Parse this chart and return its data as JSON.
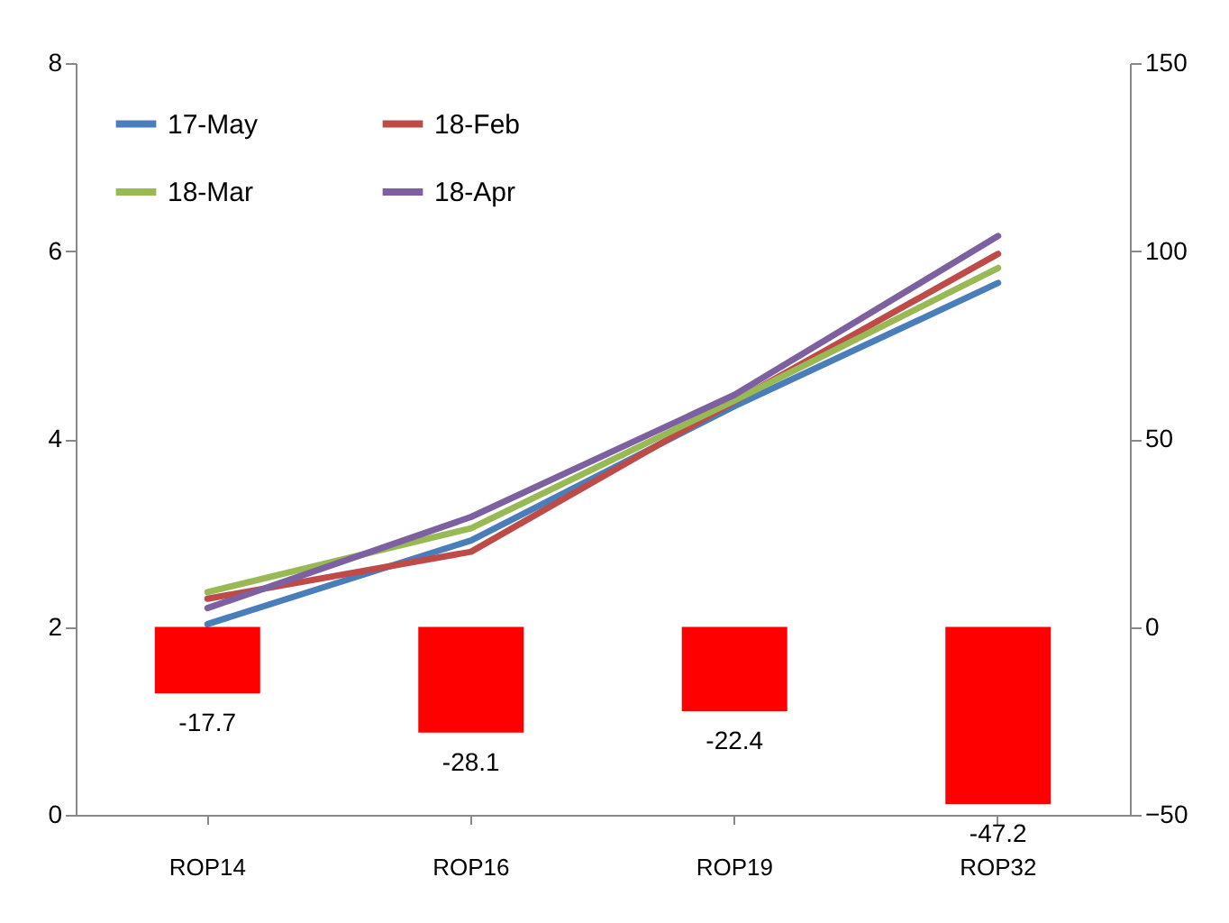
{
  "chart_data": {
    "type": "line",
    "categories": [
      "ROP14",
      "ROP16",
      "ROP19",
      "ROP32"
    ],
    "series": [
      {
        "type": "bar",
        "axis": "y2",
        "color": "#ff0000",
        "values": [
          -17.7,
          -28.1,
          -22.4,
          -47.2
        ],
        "value_labels": [
          "-17.7",
          "-28.1",
          "-22.4",
          "-47.2"
        ]
      },
      {
        "name": "17-May",
        "color": "#4a7ebb",
        "values": [
          2.03,
          2.92,
          4.35,
          5.66
        ]
      },
      {
        "name": "18-Feb",
        "color": "#be4b48",
        "values": [
          2.3,
          2.8,
          4.4,
          5.97
        ]
      },
      {
        "name": "18-Mar",
        "color": "#98b954",
        "values": [
          2.37,
          3.05,
          4.41,
          5.82
        ]
      },
      {
        "name": "18-Apr",
        "color": "#7d60a0",
        "values": [
          2.2,
          3.17,
          4.47,
          6.16
        ]
      }
    ],
    "ylim": [
      0,
      8
    ],
    "yticks": [
      0,
      2,
      4,
      6,
      8
    ],
    "y2lim": [
      -50,
      150
    ],
    "y2ticks": [
      -50,
      0,
      50,
      100,
      150
    ],
    "legend": "top left",
    "grid": false,
    "marker": "none",
    "line_style": "solid"
  }
}
